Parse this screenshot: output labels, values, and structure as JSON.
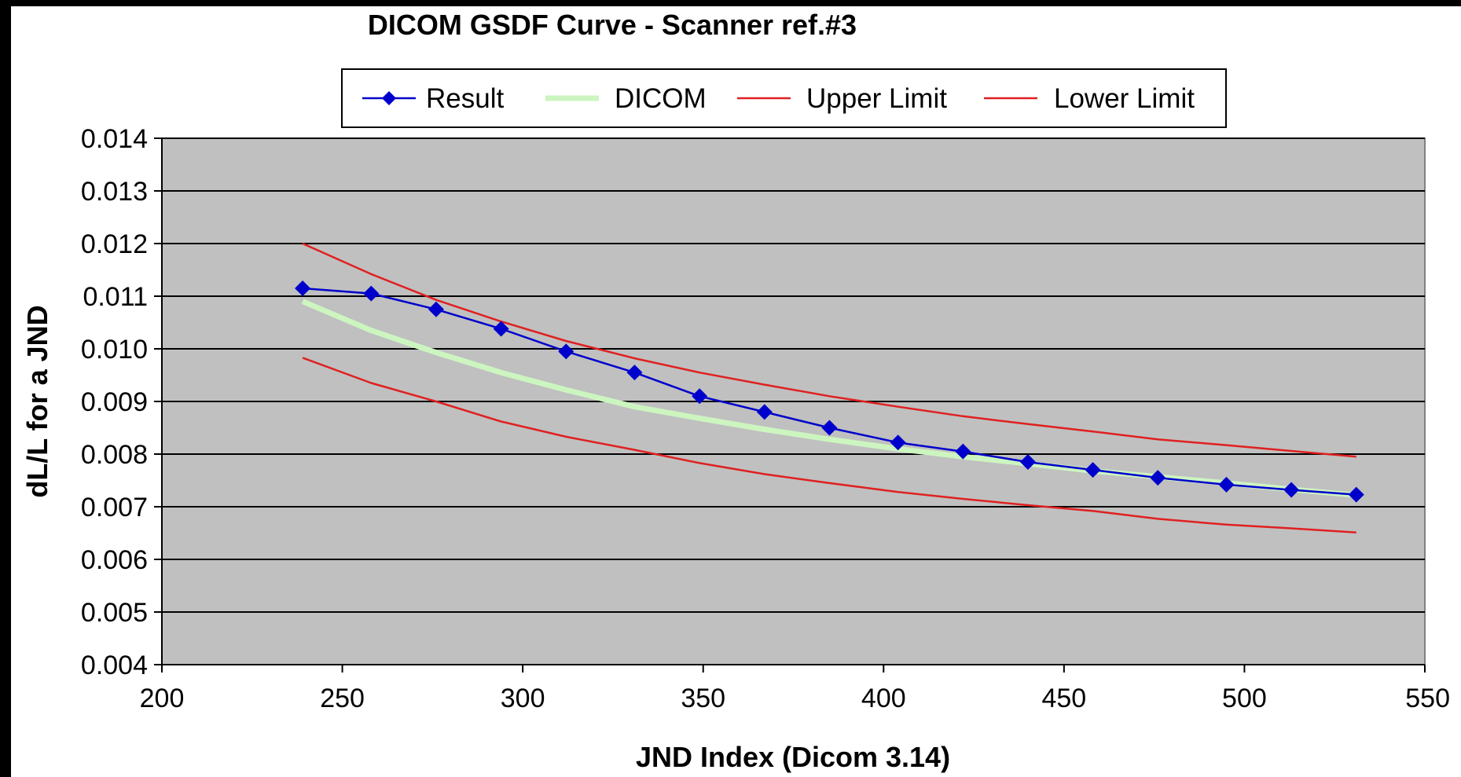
{
  "chart_data": {
    "type": "line",
    "title": "DICOM GSDF Curve - Scanner ref.#3",
    "xlabel": "JND Index (Dicom 3.14)",
    "ylabel": "dL/L for a JND",
    "xlim": [
      200,
      550
    ],
    "ylim": [
      0.004,
      0.014
    ],
    "xticks": [
      200,
      250,
      300,
      350,
      400,
      450,
      500,
      550
    ],
    "yticks": [
      0.004,
      0.005,
      0.006,
      0.007,
      0.008,
      0.009,
      0.01,
      0.011,
      0.012,
      0.013,
      0.014
    ],
    "ytick_labels": [
      "0.004",
      "0.005",
      "0.006",
      "0.007",
      "0.008",
      "0.009",
      "0.010",
      "0.011",
      "0.012",
      "0.013",
      "0.014"
    ],
    "xtick_labels": [
      "200",
      "250",
      "300",
      "350",
      "400",
      "450",
      "500",
      "550"
    ],
    "grid": "horizontal",
    "legend_position": "top",
    "plot_background": "#c0c0c0",
    "series": [
      {
        "name": "Result",
        "color": "#0000cc",
        "marker": "diamond",
        "x": [
          239,
          258,
          276,
          294,
          312,
          331,
          349,
          367,
          385,
          404,
          422,
          440,
          458,
          476,
          495,
          513,
          531
        ],
        "y": [
          0.01115,
          0.01105,
          0.01075,
          0.01038,
          0.00995,
          0.00955,
          0.0091,
          0.0088,
          0.0085,
          0.00822,
          0.00805,
          0.00785,
          0.0077,
          0.00755,
          0.00742,
          0.00732,
          0.00723
        ]
      },
      {
        "name": "DICOM",
        "color": "#ccf5c0",
        "marker": "none",
        "x": [
          239,
          258,
          276,
          294,
          312,
          331,
          349,
          367,
          385,
          404,
          422,
          440,
          458,
          476,
          495,
          513,
          531
        ],
        "y": [
          0.0109,
          0.01035,
          0.00993,
          0.00955,
          0.00922,
          0.0089,
          0.00868,
          0.00847,
          0.00828,
          0.0081,
          0.00795,
          0.00782,
          0.00768,
          0.00757,
          0.00745,
          0.00733,
          0.00722
        ]
      },
      {
        "name": "Upper Limit",
        "color": "#e02020",
        "marker": "none",
        "x": [
          239,
          258,
          276,
          294,
          312,
          331,
          349,
          367,
          385,
          404,
          422,
          440,
          458,
          476,
          495,
          513,
          531
        ],
        "y": [
          0.012,
          0.01142,
          0.01093,
          0.01052,
          0.01015,
          0.00982,
          0.00955,
          0.00932,
          0.0091,
          0.0089,
          0.00872,
          0.00857,
          0.00843,
          0.00828,
          0.00817,
          0.00806,
          0.00795
        ]
      },
      {
        "name": "Lower Limit",
        "color": "#e02020",
        "marker": "none",
        "x": [
          239,
          258,
          276,
          294,
          312,
          331,
          349,
          367,
          385,
          404,
          422,
          440,
          458,
          476,
          495,
          513,
          531
        ],
        "y": [
          0.00983,
          0.00935,
          0.009,
          0.00862,
          0.00833,
          0.00808,
          0.00783,
          0.00762,
          0.00745,
          0.00728,
          0.00715,
          0.00703,
          0.00692,
          0.00677,
          0.00666,
          0.00659,
          0.00651
        ]
      }
    ]
  }
}
